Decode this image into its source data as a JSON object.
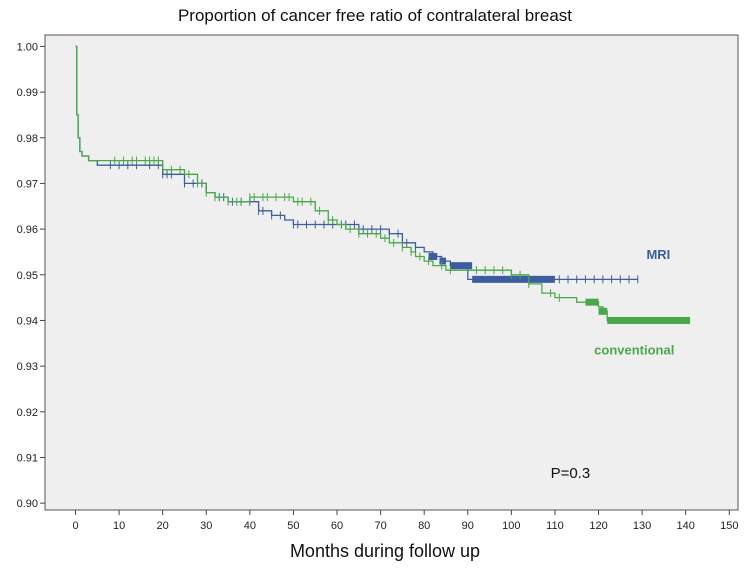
{
  "chart_data": {
    "type": "line",
    "title": "Proportion of cancer free ratio of contralateral breast",
    "xlabel": "Months during follow up",
    "ylabel": "",
    "xlim": [
      -7,
      152
    ],
    "ylim": [
      0.8985,
      1.0025
    ],
    "x_ticks": [
      0,
      10,
      20,
      30,
      40,
      50,
      60,
      70,
      80,
      90,
      100,
      110,
      120,
      130,
      140,
      150
    ],
    "x_tick_labels": [
      "0",
      "10",
      "20",
      "30",
      "40",
      "50",
      "60",
      "70",
      "80",
      "90",
      "100",
      "110",
      "120",
      "130",
      "140",
      "150"
    ],
    "y_ticks": [
      0.9,
      0.91,
      0.92,
      0.93,
      0.94,
      0.95,
      0.96,
      0.97,
      0.98,
      0.99,
      1.0
    ],
    "y_tick_labels": [
      "0.90",
      "0.91",
      "0.92",
      "0.93",
      "0.94",
      "0.95",
      "0.96",
      "0.97",
      "0.98",
      "0.99",
      "1.00"
    ],
    "background": "#efefef",
    "series": [
      {
        "name": "MRI",
        "label": "MRI",
        "color": "#3c5e9e",
        "label_at": [
          131,
          0.9535
        ],
        "x": [
          0,
          0.3,
          0.6,
          1,
          1.5,
          3,
          5,
          12,
          20,
          25,
          30,
          32,
          35,
          42,
          45,
          48,
          50,
          55,
          65,
          72,
          75,
          78,
          80,
          82,
          84,
          86,
          90,
          100,
          110,
          120,
          129
        ],
        "y": [
          1.0,
          0.985,
          0.98,
          0.977,
          0.976,
          0.975,
          0.974,
          0.974,
          0.972,
          0.97,
          0.968,
          0.967,
          0.966,
          0.964,
          0.963,
          0.962,
          0.961,
          0.961,
          0.96,
          0.959,
          0.957,
          0.956,
          0.955,
          0.954,
          0.953,
          0.952,
          0.949,
          0.949,
          0.949,
          0.949,
          0.949
        ],
        "censor_x": [
          8,
          10,
          12,
          14,
          17,
          19,
          20,
          21,
          22,
          25,
          27,
          29,
          33,
          34,
          36,
          38,
          40,
          42,
          43,
          45,
          47,
          50,
          51,
          53,
          55,
          57,
          59,
          61,
          62,
          64,
          66,
          68,
          70,
          72,
          74,
          76,
          78,
          111,
          113,
          115,
          117,
          119,
          121,
          123,
          125,
          127,
          129
        ],
        "dense_segments": [
          [
            81,
            83
          ],
          [
            83.5,
            85
          ],
          [
            86,
            91
          ],
          [
            91,
            110
          ]
        ]
      },
      {
        "name": "conventional",
        "label": "conventional",
        "color": "#4aa84a",
        "label_at": [
          119,
          0.9325
        ],
        "x": [
          0,
          0.3,
          0.6,
          1,
          1.5,
          3,
          5,
          15,
          20,
          25,
          28,
          30,
          32,
          35,
          40,
          50,
          55,
          58,
          60,
          62,
          65,
          70,
          72,
          75,
          77,
          78,
          80,
          82,
          85,
          90,
          95,
          100,
          104,
          107,
          110,
          115,
          118,
          120,
          121,
          122,
          141
        ],
        "y": [
          1.0,
          0.985,
          0.98,
          0.977,
          0.976,
          0.975,
          0.975,
          0.975,
          0.973,
          0.972,
          0.97,
          0.968,
          0.967,
          0.966,
          0.967,
          0.966,
          0.964,
          0.962,
          0.961,
          0.96,
          0.959,
          0.958,
          0.957,
          0.956,
          0.955,
          0.954,
          0.953,
          0.952,
          0.951,
          0.951,
          0.951,
          0.95,
          0.948,
          0.946,
          0.945,
          0.944,
          0.944,
          0.943,
          0.942,
          0.94,
          0.94
        ],
        "censor_x": [
          9,
          11,
          13,
          14,
          16,
          17,
          18,
          19,
          22,
          24,
          26,
          28,
          30,
          32,
          33,
          35,
          37,
          38,
          40,
          41,
          43,
          44,
          46,
          48,
          49,
          51,
          52,
          54,
          56,
          58,
          59,
          61,
          63,
          65,
          67,
          69,
          71,
          73,
          75,
          77,
          79,
          81,
          84,
          86,
          92,
          94,
          96,
          98,
          100,
          102,
          104,
          109,
          111
        ],
        "dense_segments": [
          [
            117,
            120
          ],
          [
            120,
            122
          ],
          [
            122,
            141
          ]
        ]
      }
    ],
    "annotations": [
      {
        "text": "P=0.3",
        "x": 109,
        "y": 0.9055
      }
    ]
  }
}
